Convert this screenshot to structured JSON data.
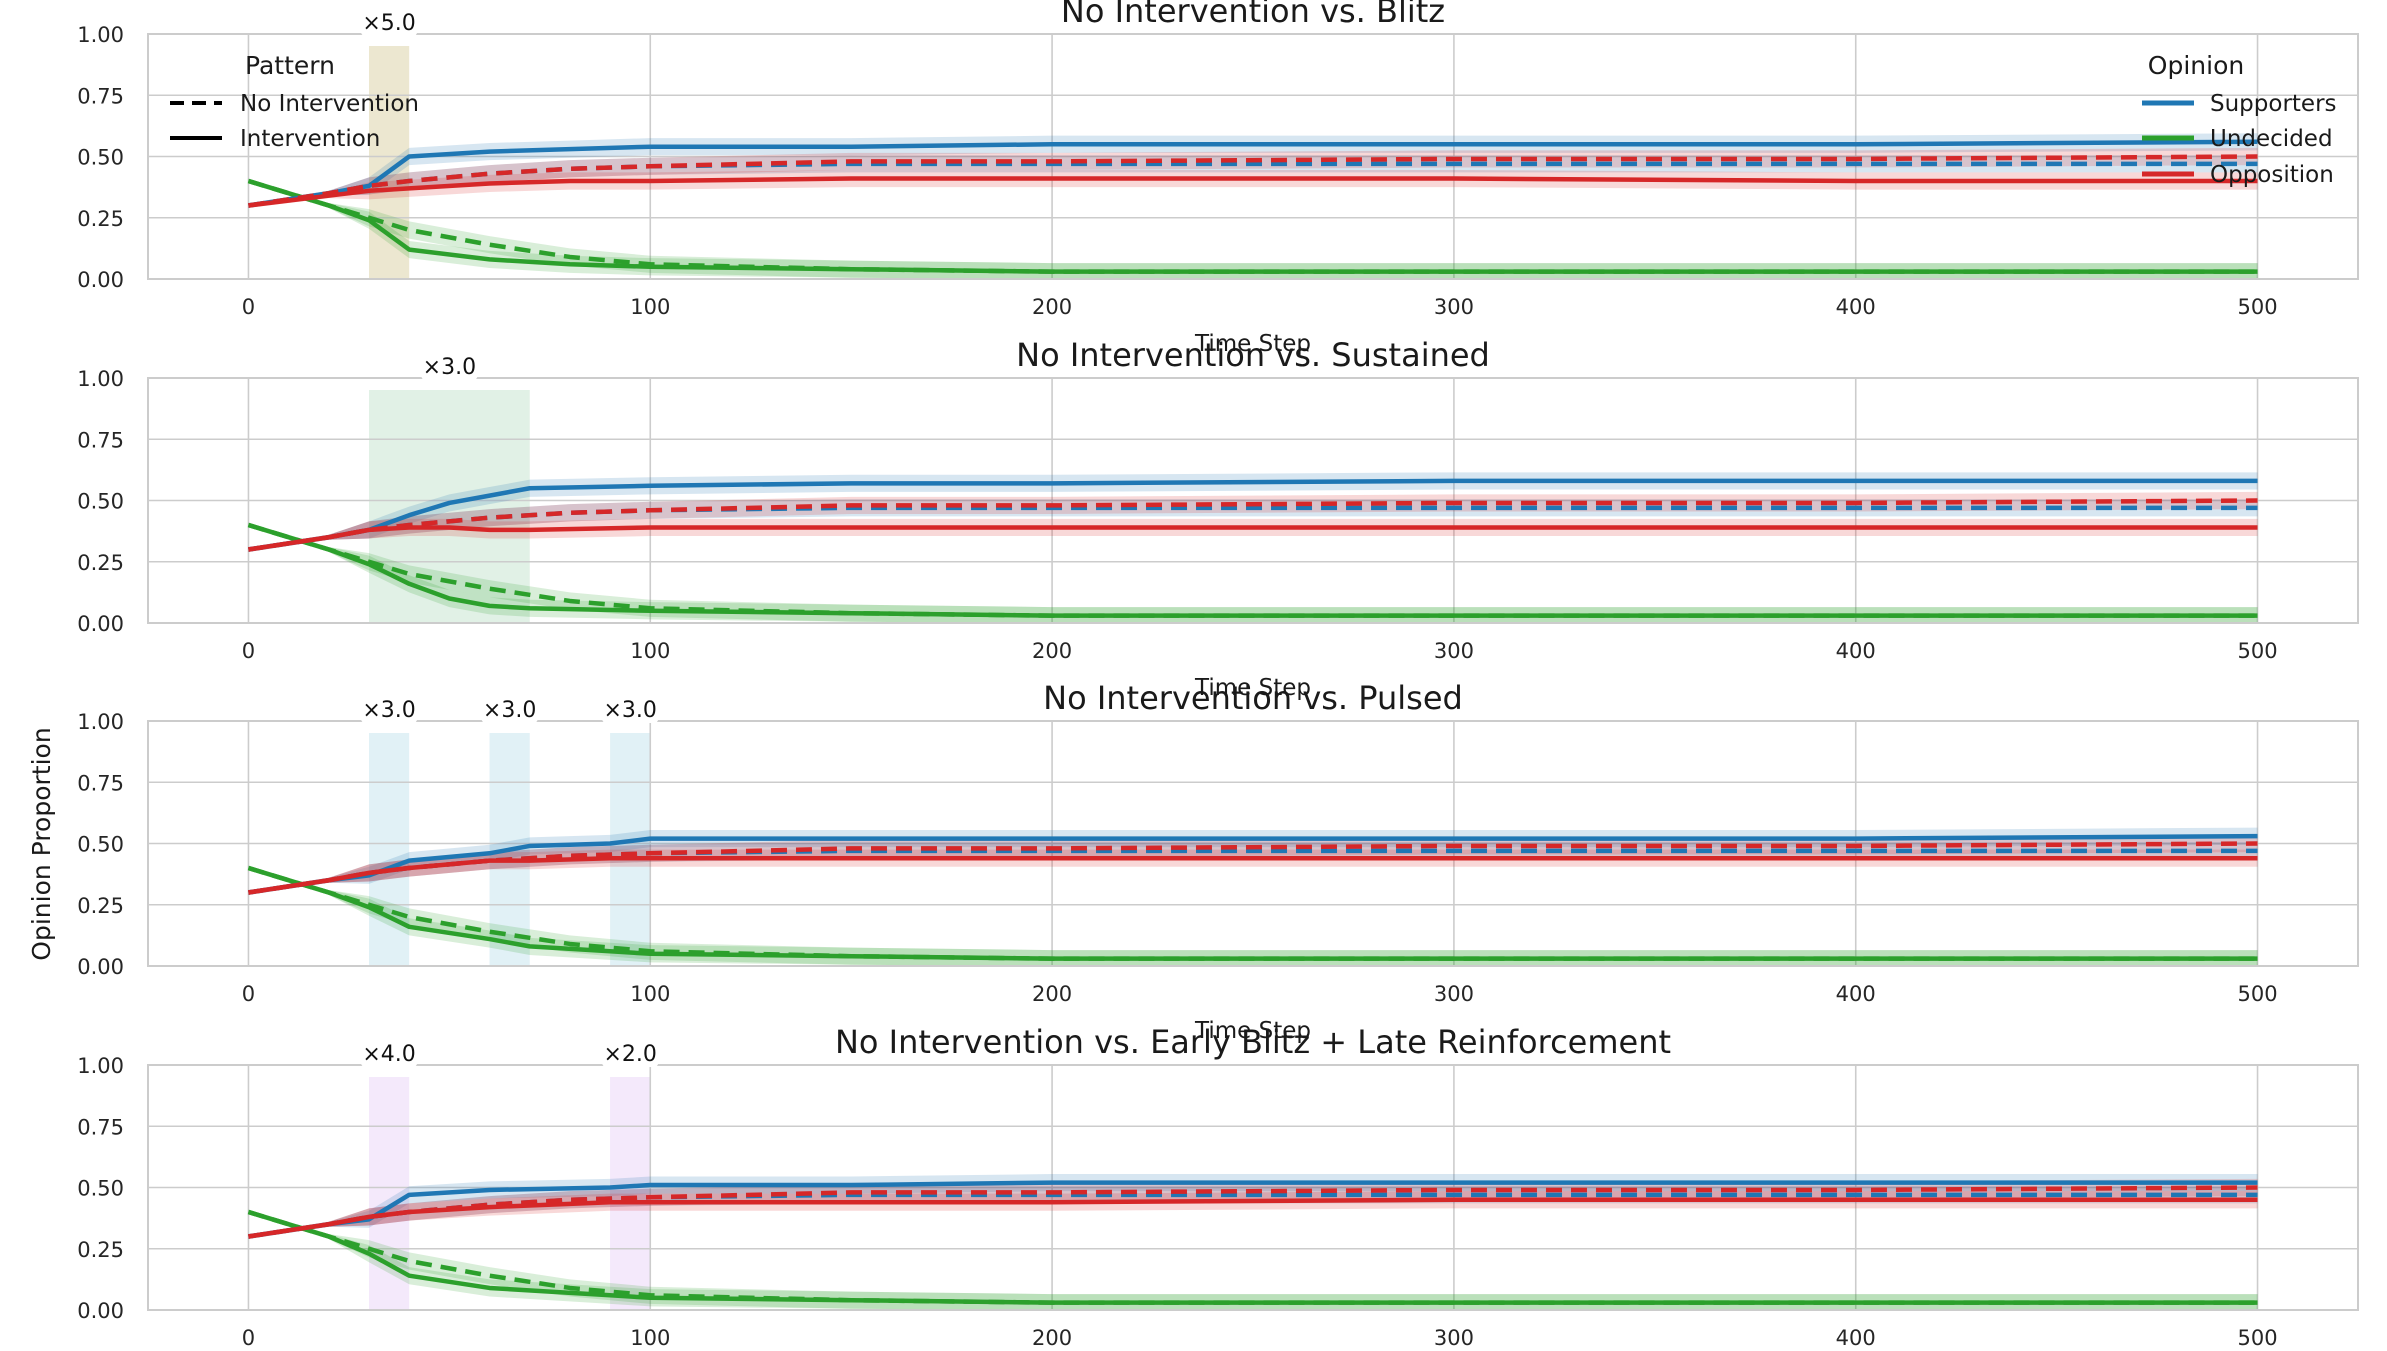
{
  "figure": {
    "ylabel": "Opinion Proportion",
    "xlabel": "Time Step",
    "legend_pattern": {
      "title": "Pattern",
      "items": [
        {
          "label": "No Intervention",
          "style": "dashed"
        },
        {
          "label": "Intervention",
          "style": "solid"
        }
      ]
    },
    "legend_opinion": {
      "title": "Opinion",
      "items": [
        {
          "label": "Supporters",
          "color": "#1f77b4"
        },
        {
          "label": "Undecided",
          "color": "#2ca02c"
        },
        {
          "label": "Opposition",
          "color": "#d62728"
        }
      ]
    }
  },
  "chart_data": [
    {
      "type": "line",
      "title": "No Intervention vs. Blitz",
      "xlabel": "Time Step",
      "xlim": [
        -25,
        525
      ],
      "ylim": [
        0,
        1
      ],
      "xticks": [
        0,
        100,
        200,
        300,
        400,
        500
      ],
      "yticks": [
        0,
        0.25,
        0.5,
        0.75,
        1.0
      ],
      "grid": true,
      "legend_placement": "top-left and top-right",
      "intervals": [
        {
          "start": 30,
          "end": 40,
          "label": "×5.0",
          "color": "#e9e3c8"
        }
      ],
      "series": [
        {
          "name": "Supporters",
          "pattern": "No Intervention",
          "x": [
            0,
            20,
            30,
            40,
            60,
            80,
            100,
            150,
            200,
            300,
            400,
            500
          ],
          "y": [
            0.3,
            0.35,
            0.38,
            0.4,
            0.43,
            0.45,
            0.46,
            0.47,
            0.47,
            0.47,
            0.47,
            0.47
          ]
        },
        {
          "name": "Undecided",
          "pattern": "No Intervention",
          "x": [
            0,
            20,
            30,
            40,
            60,
            80,
            100,
            150,
            200,
            300,
            400,
            500
          ],
          "y": [
            0.4,
            0.3,
            0.25,
            0.2,
            0.14,
            0.09,
            0.06,
            0.04,
            0.03,
            0.03,
            0.03,
            0.03
          ]
        },
        {
          "name": "Opposition",
          "pattern": "No Intervention",
          "x": [
            0,
            20,
            30,
            40,
            60,
            80,
            100,
            150,
            200,
            300,
            400,
            500
          ],
          "y": [
            0.3,
            0.35,
            0.38,
            0.4,
            0.43,
            0.45,
            0.46,
            0.48,
            0.48,
            0.49,
            0.49,
            0.5
          ]
        },
        {
          "name": "Supporters",
          "pattern": "Intervention",
          "x": [
            0,
            20,
            30,
            40,
            60,
            80,
            100,
            150,
            200,
            300,
            400,
            500
          ],
          "y": [
            0.3,
            0.35,
            0.38,
            0.5,
            0.52,
            0.53,
            0.54,
            0.54,
            0.55,
            0.55,
            0.55,
            0.56
          ]
        },
        {
          "name": "Undecided",
          "pattern": "Intervention",
          "x": [
            0,
            20,
            30,
            40,
            60,
            80,
            100,
            150,
            200,
            300,
            400,
            500
          ],
          "y": [
            0.4,
            0.3,
            0.24,
            0.12,
            0.08,
            0.06,
            0.05,
            0.04,
            0.03,
            0.03,
            0.03,
            0.03
          ]
        },
        {
          "name": "Opposition",
          "pattern": "Intervention",
          "x": [
            0,
            20,
            30,
            40,
            60,
            80,
            100,
            150,
            200,
            300,
            400,
            500
          ],
          "y": [
            0.3,
            0.34,
            0.36,
            0.37,
            0.39,
            0.4,
            0.4,
            0.41,
            0.41,
            0.41,
            0.4,
            0.4
          ]
        }
      ]
    },
    {
      "type": "line",
      "title": "No Intervention vs. Sustained",
      "xlabel": "Time Step",
      "xlim": [
        -25,
        525
      ],
      "ylim": [
        0,
        1
      ],
      "xticks": [
        0,
        100,
        200,
        300,
        400,
        500
      ],
      "yticks": [
        0,
        0.25,
        0.5,
        0.75,
        1.0
      ],
      "grid": true,
      "intervals": [
        {
          "start": 30,
          "end": 70,
          "label": "×3.0",
          "color": "#dceee2"
        }
      ],
      "series": [
        {
          "name": "Supporters",
          "pattern": "No Intervention",
          "x": [
            0,
            20,
            30,
            40,
            60,
            80,
            100,
            150,
            200,
            300,
            400,
            500
          ],
          "y": [
            0.3,
            0.35,
            0.38,
            0.4,
            0.43,
            0.45,
            0.46,
            0.47,
            0.47,
            0.47,
            0.47,
            0.47
          ]
        },
        {
          "name": "Undecided",
          "pattern": "No Intervention",
          "x": [
            0,
            20,
            30,
            40,
            60,
            80,
            100,
            150,
            200,
            300,
            400,
            500
          ],
          "y": [
            0.4,
            0.3,
            0.25,
            0.2,
            0.14,
            0.09,
            0.06,
            0.04,
            0.03,
            0.03,
            0.03,
            0.03
          ]
        },
        {
          "name": "Opposition",
          "pattern": "No Intervention",
          "x": [
            0,
            20,
            30,
            40,
            60,
            80,
            100,
            150,
            200,
            300,
            400,
            500
          ],
          "y": [
            0.3,
            0.35,
            0.38,
            0.4,
            0.43,
            0.45,
            0.46,
            0.48,
            0.48,
            0.49,
            0.49,
            0.5
          ]
        },
        {
          "name": "Supporters",
          "pattern": "Intervention",
          "x": [
            0,
            20,
            30,
            40,
            50,
            60,
            70,
            100,
            150,
            200,
            300,
            400,
            500
          ],
          "y": [
            0.3,
            0.35,
            0.38,
            0.44,
            0.49,
            0.52,
            0.55,
            0.56,
            0.57,
            0.57,
            0.58,
            0.58,
            0.58
          ]
        },
        {
          "name": "Undecided",
          "pattern": "Intervention",
          "x": [
            0,
            20,
            30,
            40,
            50,
            60,
            70,
            100,
            150,
            200,
            300,
            400,
            500
          ],
          "y": [
            0.4,
            0.3,
            0.24,
            0.16,
            0.1,
            0.07,
            0.06,
            0.05,
            0.04,
            0.03,
            0.03,
            0.03,
            0.03
          ]
        },
        {
          "name": "Opposition",
          "pattern": "Intervention",
          "x": [
            0,
            20,
            30,
            40,
            50,
            60,
            70,
            100,
            150,
            200,
            300,
            400,
            500
          ],
          "y": [
            0.3,
            0.35,
            0.38,
            0.39,
            0.39,
            0.38,
            0.38,
            0.39,
            0.39,
            0.39,
            0.39,
            0.39,
            0.39
          ]
        }
      ]
    },
    {
      "type": "line",
      "title": "No Intervention vs. Pulsed",
      "xlabel": "Time Step",
      "xlim": [
        -25,
        525
      ],
      "ylim": [
        0,
        1
      ],
      "xticks": [
        0,
        100,
        200,
        300,
        400,
        500
      ],
      "yticks": [
        0,
        0.25,
        0.5,
        0.75,
        1.0
      ],
      "grid": true,
      "intervals": [
        {
          "start": 30,
          "end": 40,
          "label": "×3.0",
          "color": "#dceff4"
        },
        {
          "start": 60,
          "end": 70,
          "label": "×3.0",
          "color": "#dceff4"
        },
        {
          "start": 90,
          "end": 100,
          "label": "×3.0",
          "color": "#dceff4"
        }
      ],
      "series": [
        {
          "name": "Supporters",
          "pattern": "No Intervention",
          "x": [
            0,
            20,
            30,
            40,
            60,
            80,
            100,
            150,
            200,
            300,
            400,
            500
          ],
          "y": [
            0.3,
            0.35,
            0.38,
            0.4,
            0.43,
            0.45,
            0.46,
            0.47,
            0.47,
            0.47,
            0.47,
            0.47
          ]
        },
        {
          "name": "Undecided",
          "pattern": "No Intervention",
          "x": [
            0,
            20,
            30,
            40,
            60,
            80,
            100,
            150,
            200,
            300,
            400,
            500
          ],
          "y": [
            0.4,
            0.3,
            0.25,
            0.2,
            0.14,
            0.09,
            0.06,
            0.04,
            0.03,
            0.03,
            0.03,
            0.03
          ]
        },
        {
          "name": "Opposition",
          "pattern": "No Intervention",
          "x": [
            0,
            20,
            30,
            40,
            60,
            80,
            100,
            150,
            200,
            300,
            400,
            500
          ],
          "y": [
            0.3,
            0.35,
            0.38,
            0.4,
            0.43,
            0.45,
            0.46,
            0.48,
            0.48,
            0.49,
            0.49,
            0.5
          ]
        },
        {
          "name": "Supporters",
          "pattern": "Intervention",
          "x": [
            0,
            20,
            30,
            40,
            60,
            70,
            90,
            100,
            150,
            200,
            300,
            400,
            500
          ],
          "y": [
            0.3,
            0.35,
            0.37,
            0.43,
            0.46,
            0.49,
            0.5,
            0.52,
            0.52,
            0.52,
            0.52,
            0.52,
            0.53
          ]
        },
        {
          "name": "Undecided",
          "pattern": "Intervention",
          "x": [
            0,
            20,
            30,
            40,
            60,
            70,
            90,
            100,
            150,
            200,
            300,
            400,
            500
          ],
          "y": [
            0.4,
            0.3,
            0.24,
            0.16,
            0.11,
            0.08,
            0.06,
            0.05,
            0.04,
            0.03,
            0.03,
            0.03,
            0.03
          ]
        },
        {
          "name": "Opposition",
          "pattern": "Intervention",
          "x": [
            0,
            20,
            30,
            40,
            60,
            70,
            90,
            100,
            150,
            200,
            300,
            400,
            500
          ],
          "y": [
            0.3,
            0.35,
            0.38,
            0.4,
            0.43,
            0.43,
            0.44,
            0.44,
            0.44,
            0.44,
            0.44,
            0.44,
            0.44
          ]
        }
      ]
    },
    {
      "type": "line",
      "title": "No Intervention vs. Early Blitz + Late Reinforcement",
      "xlabel": "Time Step",
      "xlim": [
        -25,
        525
      ],
      "ylim": [
        0,
        1
      ],
      "xticks": [
        0,
        100,
        200,
        300,
        400,
        500
      ],
      "yticks": [
        0,
        0.25,
        0.5,
        0.75,
        1.0
      ],
      "grid": true,
      "intervals": [
        {
          "start": 30,
          "end": 40,
          "label": "×4.0",
          "color": "#f2e5fa"
        },
        {
          "start": 90,
          "end": 100,
          "label": "×2.0",
          "color": "#f2e5fa"
        }
      ],
      "series": [
        {
          "name": "Supporters",
          "pattern": "No Intervention",
          "x": [
            0,
            20,
            30,
            40,
            60,
            80,
            100,
            150,
            200,
            300,
            400,
            500
          ],
          "y": [
            0.3,
            0.35,
            0.38,
            0.4,
            0.43,
            0.45,
            0.46,
            0.47,
            0.47,
            0.47,
            0.47,
            0.47
          ]
        },
        {
          "name": "Undecided",
          "pattern": "No Intervention",
          "x": [
            0,
            20,
            30,
            40,
            60,
            80,
            100,
            150,
            200,
            300,
            400,
            500
          ],
          "y": [
            0.4,
            0.3,
            0.25,
            0.2,
            0.14,
            0.09,
            0.06,
            0.04,
            0.03,
            0.03,
            0.03,
            0.03
          ]
        },
        {
          "name": "Opposition",
          "pattern": "No Intervention",
          "x": [
            0,
            20,
            30,
            40,
            60,
            80,
            100,
            150,
            200,
            300,
            400,
            500
          ],
          "y": [
            0.3,
            0.35,
            0.38,
            0.4,
            0.43,
            0.45,
            0.46,
            0.48,
            0.48,
            0.49,
            0.49,
            0.5
          ]
        },
        {
          "name": "Supporters",
          "pattern": "Intervention",
          "x": [
            0,
            20,
            30,
            40,
            60,
            90,
            100,
            150,
            200,
            300,
            400,
            500
          ],
          "y": [
            0.3,
            0.35,
            0.37,
            0.47,
            0.49,
            0.5,
            0.51,
            0.51,
            0.52,
            0.52,
            0.52,
            0.52
          ]
        },
        {
          "name": "Undecided",
          "pattern": "Intervention",
          "x": [
            0,
            20,
            30,
            40,
            60,
            90,
            100,
            150,
            200,
            300,
            400,
            500
          ],
          "y": [
            0.4,
            0.3,
            0.23,
            0.14,
            0.09,
            0.06,
            0.05,
            0.04,
            0.03,
            0.03,
            0.03,
            0.03
          ]
        },
        {
          "name": "Opposition",
          "pattern": "Intervention",
          "x": [
            0,
            20,
            30,
            40,
            60,
            90,
            100,
            150,
            200,
            300,
            400,
            500
          ],
          "y": [
            0.3,
            0.35,
            0.38,
            0.4,
            0.42,
            0.44,
            0.44,
            0.44,
            0.44,
            0.45,
            0.45,
            0.45
          ]
        }
      ]
    }
  ]
}
